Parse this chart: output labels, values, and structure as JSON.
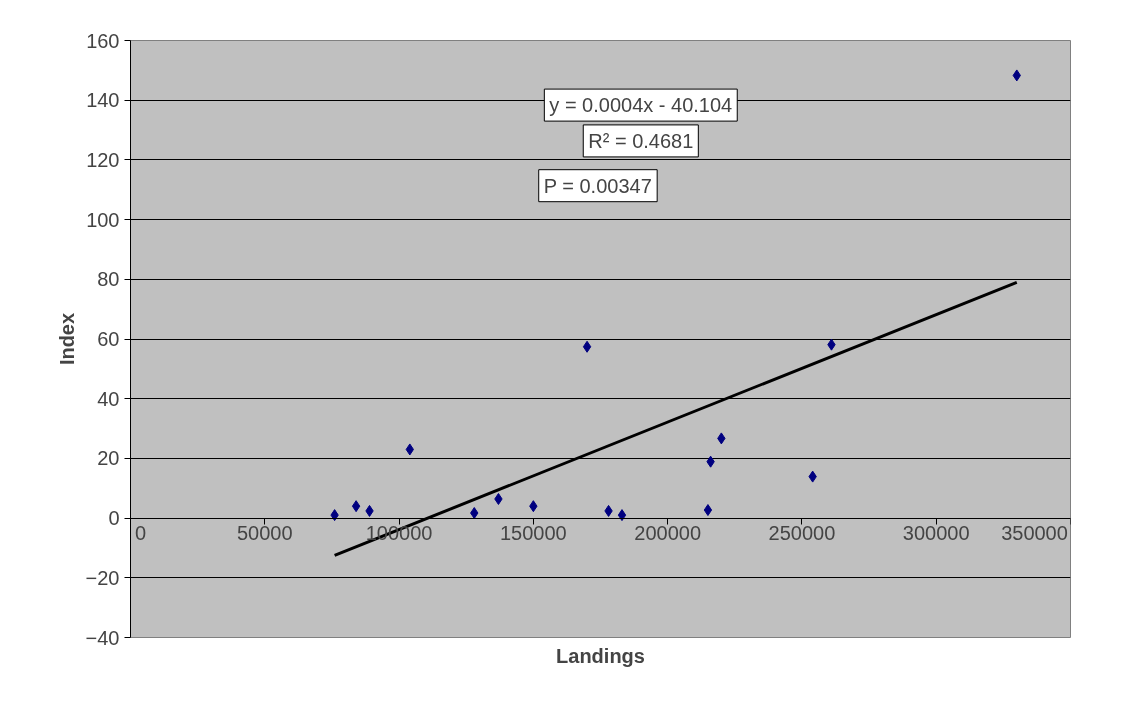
{
  "chart_data": {
    "type": "scatter",
    "xlabel": "Landings",
    "ylabel": "Index",
    "xlim": [
      0,
      350000
    ],
    "xticks": [
      0,
      50000,
      100000,
      150000,
      200000,
      250000,
      300000,
      350000
    ],
    "ylim": [
      -40,
      160
    ],
    "yticks": [
      -40,
      -20,
      0,
      20,
      40,
      60,
      80,
      100,
      120,
      140,
      160
    ],
    "grid": "y",
    "series": [
      {
        "marker": "diamond",
        "color": "#000080",
        "x": [
          76000,
          84000,
          89000,
          104000,
          128000,
          137000,
          150000,
          170000,
          178000,
          183000,
          215000,
          216000,
          220000,
          254000,
          261000,
          330000
        ],
        "values": [
          1,
          4,
          2.4,
          23,
          1.7,
          6.4,
          4,
          57.4,
          2.4,
          1,
          2.7,
          18.9,
          26.7,
          13.9,
          58.1,
          148.3
        ]
      },
      {
        "type": "line",
        "color": "#000000",
        "x": [
          76000,
          330000
        ],
        "values": [
          -12.5,
          79
        ]
      }
    ],
    "annotations": [
      "y = 0.0004x - 40.104",
      "R² = 0.4681",
      "P = 0.00347"
    ]
  }
}
